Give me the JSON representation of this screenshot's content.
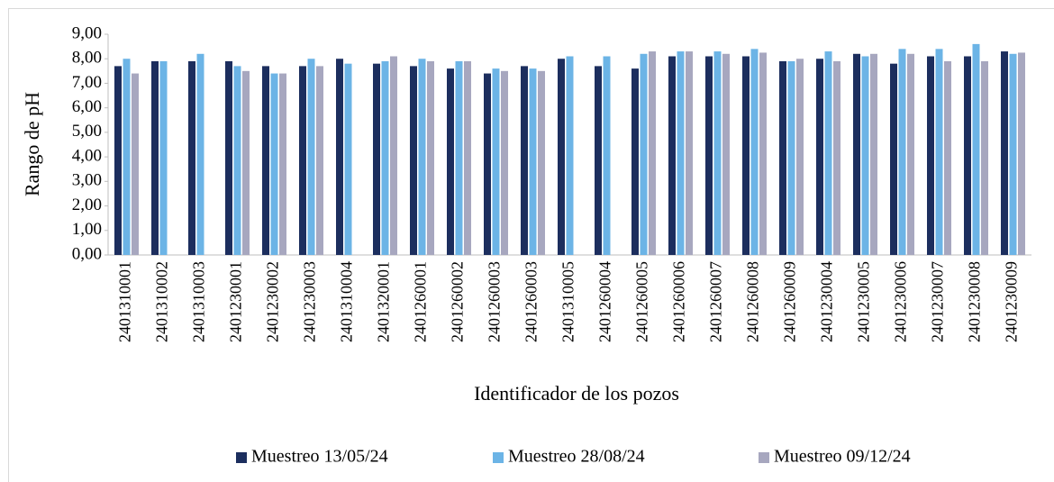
{
  "chart_data": {
    "type": "bar",
    "y_label": "Rango de pH",
    "x_label": "Identificador de los pozos",
    "categories": [
      "2401310001",
      "2401310002",
      "2401310003",
      "2401230001",
      "2401230002",
      "2401230003",
      "2401310004",
      "2401320001",
      "2401260001",
      "2401260002",
      "2401260003",
      "2401260003",
      "2401310005",
      "2401260004",
      "2401260005",
      "2401260006",
      "2401260007",
      "2401260008",
      "2401260009",
      "2401230004",
      "2401230005",
      "2401230006",
      "2401230007",
      "2401230008",
      "2401230009"
    ],
    "series": [
      {
        "name": "Muestreo 13/05/24",
        "color": "#1c2e5e",
        "values": [
          7.7,
          7.9,
          7.9,
          7.9,
          7.7,
          7.7,
          8.0,
          7.8,
          7.7,
          7.6,
          7.4,
          7.7,
          8.0,
          7.7,
          7.6,
          8.1,
          8.1,
          8.1,
          7.9,
          8.0,
          8.2,
          7.8,
          8.1,
          8.1,
          8.3
        ]
      },
      {
        "name": "Muestreo 28/08/24",
        "color": "#6cb4e6",
        "values": [
          8.0,
          7.9,
          8.2,
          7.7,
          7.4,
          8.0,
          7.8,
          7.9,
          8.0,
          7.9,
          7.6,
          7.6,
          8.1,
          8.1,
          8.2,
          8.3,
          8.3,
          8.4,
          7.9,
          8.3,
          8.1,
          8.4,
          8.4,
          8.6,
          8.2
        ]
      },
      {
        "name": "Muestreo 09/12/24",
        "color": "#a7a7bf",
        "values": [
          7.4,
          null,
          null,
          7.5,
          7.4,
          7.7,
          null,
          8.1,
          7.9,
          7.9,
          7.5,
          7.5,
          null,
          null,
          8.3,
          8.3,
          8.2,
          8.25,
          8.0,
          7.9,
          8.2,
          8.2,
          7.9,
          7.9,
          8.25
        ]
      }
    ],
    "ylim": [
      0,
      9
    ],
    "yticks": [
      {
        "value": 0,
        "label": "0,00"
      },
      {
        "value": 1,
        "label": "1,00"
      },
      {
        "value": 2,
        "label": "2,00"
      },
      {
        "value": 3,
        "label": "3,00"
      },
      {
        "value": 4,
        "label": "4,00"
      },
      {
        "value": 5,
        "label": "5,00"
      },
      {
        "value": 6,
        "label": "6,00"
      },
      {
        "value": 7,
        "label": "7,00"
      },
      {
        "value": 8,
        "label": "8,00"
      },
      {
        "value": 9,
        "label": "9,00"
      }
    ],
    "legend": "bottom"
  }
}
